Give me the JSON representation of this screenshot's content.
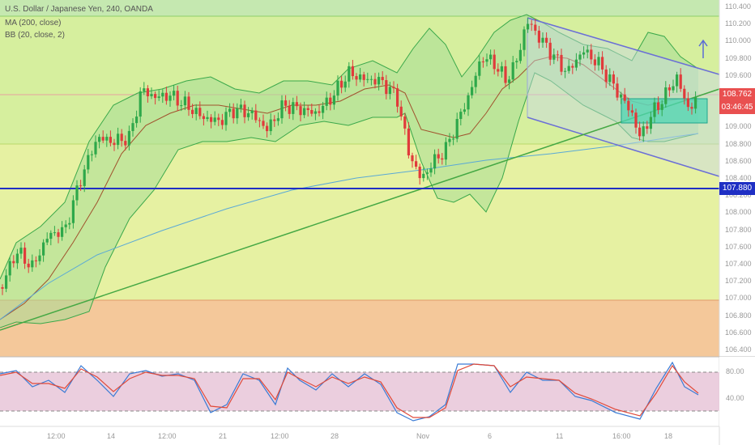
{
  "legend": {
    "symbol": "U.S. Dollar / Japanese Yen, 240, OANDA",
    "ma": "MA (200, close)",
    "bb": "BB (20, close, 2)"
  },
  "price_axis": {
    "labels": [
      "110.400",
      "110.200",
      "110.000",
      "109.800",
      "109.600",
      "109.400",
      "109.200",
      "109.000",
      "108.800",
      "108.600",
      "108.400",
      "108.200",
      "108.000",
      "107.800",
      "107.600",
      "107.400",
      "107.200",
      "107.000",
      "106.800",
      "106.600",
      "106.400"
    ],
    "current_price": "108.762",
    "countdown": "03:46:45",
    "level_line_price": "107.880"
  },
  "time_axis": {
    "labels": [
      "12:00",
      "14",
      "12:00",
      "21",
      "12:00",
      "28",
      "Nov",
      "6",
      "11",
      "16:00",
      "18"
    ]
  },
  "stoch_axis": {
    "labels": [
      "80.00",
      "40.00"
    ]
  },
  "colors": {
    "zone_top": "#c5e8b0",
    "zone_green": "#d8ef9f",
    "zone_yellow": "#e6f09f",
    "zone_orange": "#f4c79a",
    "level_line": "#1f2fc4",
    "channel": "#6b6fd6",
    "bull": "#2ea84a",
    "bear": "#e03b3b",
    "stoch_bg": "#e8c6d6"
  },
  "icons": {
    "arrow": "up-arrow-icon"
  }
}
